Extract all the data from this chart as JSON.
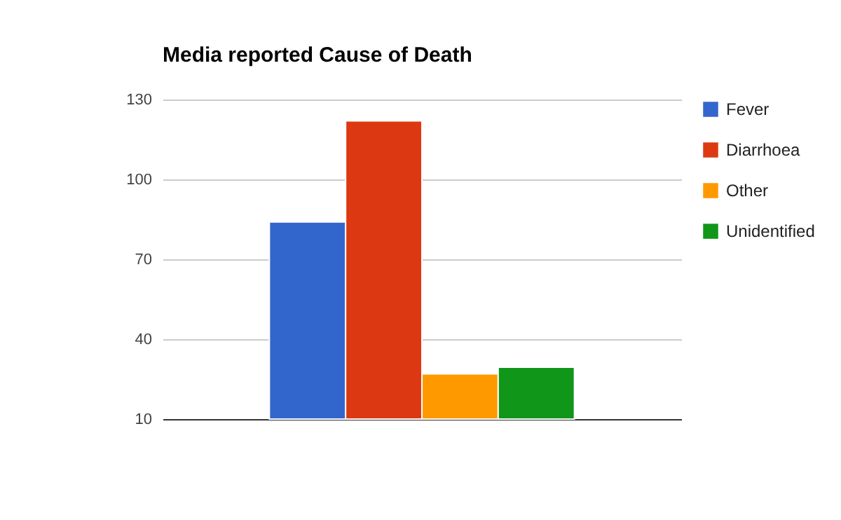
{
  "chart_data": {
    "type": "bar",
    "title": "Media reported Cause of Death",
    "categories": [
      null
    ],
    "series": [
      {
        "name": "Fever",
        "color": "#3366cc",
        "values": [
          84
        ]
      },
      {
        "name": "Diarrhoea",
        "color": "#dc3912",
        "values": [
          122
        ]
      },
      {
        "name": "Other",
        "color": "#ff9900",
        "values": [
          27
        ]
      },
      {
        "name": "Unidentified",
        "color": "#109618",
        "values": [
          29.5
        ]
      }
    ],
    "ylim": [
      10,
      130
    ],
    "yticks": [
      10,
      40,
      70,
      100,
      130
    ],
    "grid": "y",
    "legend": "right",
    "tick_labels": "y"
  }
}
